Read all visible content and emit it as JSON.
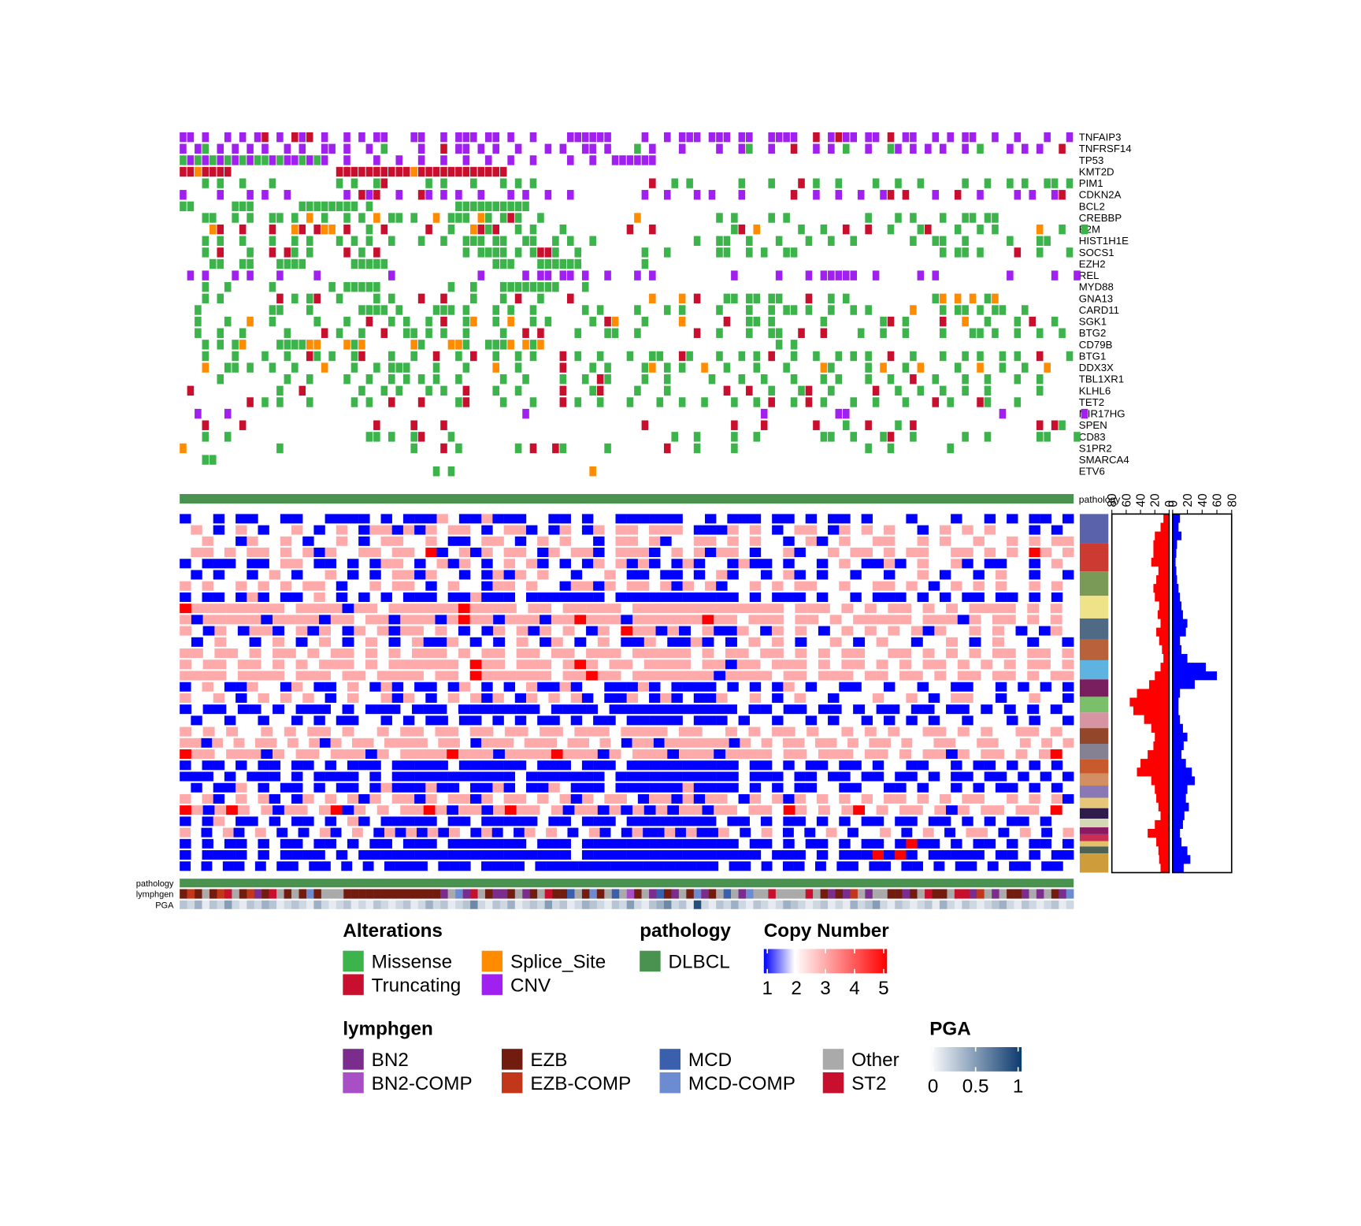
{
  "oncoprint": {
    "annotation_label": "pathology",
    "pathology_color": "#4a9250",
    "genes": [
      {
        "name": "TNFAIP3",
        "cells": "CC.C..C.C.CT.C.TCT.C..C.C.CC...CC..C.CCC.CC.C..C....CCCCCC....C..C.CCC.CCC.CC..CCCC..T.CTCC.CC.T.CC..C.C.CC..C..C...C..C"
      },
      {
        "name": "TNFRSF14",
        "cells": "C.CM.C.C.C.C..C.C..CC.C..C.M....C..T.CC.C.C..C...C.C..CC.C...M.C...C....C..CM..C..T..C.C.M..C..MC.C.C.C..C.M...C.C.C..T."
      },
      {
        "name": "TP53",
        "cells": "MCMCMCMCMCMMCMCCMCMC..C...C..C..C..C..C..C..C..C....C..C..CCCCCC......................................................."
      },
      {
        "name": "KMT2D",
        "cells": "TTSTTTT..............TTTTTTTTTTSTTTTTTTTTTTT......................................................................."
      },
      {
        "name": "PIM1",
        "cells": "...M.M..M...M........M.M..MT.....M.M...M...M.M.M...............T..M.M......M...M...T.M..M....M..M..M.....M..M..M.M..MM.M.."
      },
      {
        "name": "CDKN2A",
        "cells": "C....C...C.C..C.......C.TCT..C..TC.C.C..C...C.C..C..C.........C..C...C.C...C......T..C..C..C..CT.T...C..T..C....C.C..CT."
      },
      {
        "name": "BCL2",
        "cells": "MM.....MMM......MMMMMMMM.M...........MMMMMMMMMM...................................................................."
      },
      {
        "name": "CREBBP",
        "cells": "...MM..M.M..MM.M.S.M..M.M.S.MM.M..S.MMM.SM.MTM..M............S..........M.M....M.M..........M...M.M...M..MM.MM.........."
      },
      {
        "name": "B2M",
        "cells": "....ST..T...T..ST.TSS.T..M.T.....T..M..STMT..M.M...M........T..T..........MT.S.....M..M..T..T..M...MT...M..M.M.....S..M..M"
      },
      {
        "name": "HIST1H1E",
        "cells": "...M.M..M...M..M.M...M.M.M..M...M..M..MMM.MM..MM..M.M..M.............M..MM..M...M...M..M..M.......M..MM..M.....M...MM."
      },
      {
        "name": "SOCS1",
        "cells": "...M.T...M..T.TM.M....T.M.T...........M.MMMM.M.MTTM..M........M..M......MM..M.M..MM...................M.MM.M....T..M...M"
      },
      {
        "name": "EZH2",
        "cells": "....MM..MM...MMMM......MMMMM..............MMM...MMMMMM........M................................................."
      },
      {
        "name": "REL",
        "cells": ".C.C...C.C...C....C.........C...........C.....C.CC.CC.C..C...C.C..........C.....C...C.CCCCC..C.....C.C.........C.....C..C"
      },
      {
        "name": "MYD88",
        "cells": "...M..M.....M.......M.MMMMM.........M..M...MMMMMMMM...M........................................................"
      },
      {
        "name": "GNA13",
        "cells": "...M.M.......T.M.MT..M....M.M...T..T...M...M.T..M...T..........S...S.T...MM.MM.MM...T..M.M...........MS.S.S.MS.........."
      },
      {
        "name": "CARD11",
        "cells": "..M.........MM...M......MMMM.M....MMM.M...M.M..M......M.M....M...M.M....M...M..M.MM.M..M..M.M.....S...M.MM.M.MM..M......"
      },
      {
        "name": "SGK1",
        "cells": "..M...M..S..M.....M...M..T..M.M..M.T..MS..M.S..M.M.....M.TS...M....S.....T..MM.M......M.......MT.M....T..S..M...M.T..M.."
      },
      {
        "name": "BTG2",
        "cells": "..M..M..M.....M....T.M..M..T..MM.M.M..M....M..T.T....M...MM..M.......T..M...M..MM..T..T....M..M..M....M...MM.M..M..M..M."
      },
      {
        "name": "CD79B",
        "cells": "...M.M.MS....MMMMSS...SMS......SM...SSM..MMMS.SMS...............................M.M................................"
      },
      {
        "name": "BTG1",
        "cells": "...M...M...M..M..TM.M..MT...M..M..T..M.T..M..M.M...T.M..M...M..MM..TM...M..M.M.T..M..M..M.M.M..T..M...M..M.M..M.M..T...M"
      },
      {
        "name": "DDX3X",
        "cells": "...S..MM.M..M..M...S...M..M.MMM...M...M...S..M.....T...M.M....MS.M.M..S..M...M...M....SM....M.S..M.S....M..S..M..M..S..."
      },
      {
        "name": "TBL1XR1",
        "cells": ".....M........M..M....M..M..M.M.M.M..M.....M..M....M..M.TM....M..M.....M...M..M...M...M.M...M..M..T..M...M..M...M..M...."
      },
      {
        "name": "KLHL6",
        "cells": ".T...........M..T.......M..M.M...M.M..T...M..M.....T...MT....M...M.......T..T..M...MT..M.....T..M..M..M..M..M......M....."
      },
      {
        "name": "TET2",
        "cells": ".........T.M.M...M.....M.M..T...T....MT....M...M...T.M..M...M...M..M..M...M..M.T..M.T.M...M..M...M...T.M...TM...M......."
      },
      {
        "name": "MIR17HG",
        "cells": "..C...C.......................................C...............................C.........CC....................C..........C........................"
      },
      {
        "name": "SPEN",
        "cells": "...T....T.................T....T...T..........................T...........T...T......T...M..T...M.T................T.TM."
      },
      {
        "name": "CD83",
        "cells": "...M..M..................MM.M..MT...M.............................M..M....M..M........MM..M...MT..M......M..M......MM...M.."
      },
      {
        "name": "S1PR2",
        "cells": "S............M.................M...T.M.......M.T..TM.....M.......T...M....M.................M..M.......M................."
      },
      {
        "name": "SMARCA4",
        "cells": "...MM..............................................................................................................."
      },
      {
        "name": "ETV6",
        "cells": "..................................M.M..................S............................................................"
      }
    ]
  },
  "copy_number": {
    "rows": [
      "12212112211221111212111321131112211212211111122121112112121121222122212212121121",
      "23212321223212321331313233212331213213233233321113232123321323232212323232221212",
      "22322132232122321233223211233212323221233231223323232212312322332232322322323233",
      "23323233232313223323325123132332132331233312323133212231223233232332233232325323",
      "12111211233211212133212313212323121213231312131221311212212321131232231211221232",
      "21212212321223212123313221213132322122321121121231221231212212212232122123221221",
      "32322323232332122323321232213323221331323323132312232323322322332321232323223232",
      "12112131211232121212111211311121111111211111111111212111212212111212121121121212",
      "53333333323333133233333353333233233333233333333333332333232323323232333323232",
      "31333331333313323313331353313331335333133333353323332332323333323331323323232",
      "32132133123132132313323212132313232132533131231132132321232323231322323212132",
      "21232212321232123212311321212321321232113211312123232122321232212232123221221",
      "33233232332323323232333232332332332333233333232332332323233223323232323323323",
      "32332332323233323233333325332333235323323333233133233323233232323323232323323",
      "33332333323332332333323325333333233533233333331333323323332332332323323323233",
      "12321132213211232131211213212123113122111312111121212132122112212212211221212121",
      "32232123232321232231321232313213232312113213121132232123221222322321233221223221",
      "12112112121112121112111211111112111121111111111121121121121211211211212121212",
      "21221221221212112212121121121212112121121111121112122122121221212121221222121221",
      "32323223232332322323323323323323323332333323322323233232232323223323232233232",
      "33132323323231323323333233213332333233232133133333313232332332323323223322332232323",
      "53323331323323331323333533313333533313233313331333323323332332323313233232352",
      "12112121121121211121111121111112111211121111111111211212112112122112212112121212",
      "11121211121211112121111111111121111111211111111111211121121121121121211211212121",
      "21211321211212112131113112113121132111211111131111212121122112211212212121121212",
      "32312323121323231323313233132332323132332133131332132313232323233232323322323231",
      "53135323133235132323353133135332313313131313313323325323235232332313233233252",
      "12132112121121231211111211211111211211121111111121121211212121121121121212112122",
      "32123123212123123213131313213121323212312131131311321232121232122321232123321232123",
      "12121121211211212112111211111112111211111111111111211212112121121511212112121121",
      "12111121211112121111111111111111111211111111111111112111212111515121111121121211",
      "12121121211211212121111211121111211111111111111111211212112121121121121211212112112"
    ],
    "chromosomes": [
      {
        "color": "#5a62ab",
        "size": 34
      },
      {
        "color": "#cc3b32",
        "size": 32
      },
      {
        "color": "#7a9a58",
        "size": 28
      },
      {
        "color": "#efe38a",
        "size": 26
      },
      {
        "color": "#4e6a85",
        "size": 24
      },
      {
        "color": "#b8613a",
        "size": 24
      },
      {
        "color": "#5eb3e0",
        "size": 22
      },
      {
        "color": "#7a1f5e",
        "size": 20
      },
      {
        "color": "#7bbf6a",
        "size": 18
      },
      {
        "color": "#d695a3",
        "size": 18
      },
      {
        "color": "#93472a",
        "size": 18
      },
      {
        "color": "#868192",
        "size": 18
      },
      {
        "color": "#c95a2c",
        "size": 16
      },
      {
        "color": "#d38e62",
        "size": 14
      },
      {
        "color": "#8a77b5",
        "size": 14
      },
      {
        "color": "#e6c77a",
        "size": 12
      },
      {
        "color": "#2e1d4a",
        "size": 12
      },
      {
        "color": "#d3d9b4",
        "size": 10
      },
      {
        "color": "#8b1a66",
        "size": 8
      },
      {
        "color": "#c92f54",
        "size": 8
      },
      {
        "color": "#e5c06b",
        "size": 6
      },
      {
        "color": "#4d6253",
        "size": 8
      },
      {
        "color": "#cf9c3c",
        "size": 22
      }
    ],
    "gain": {
      "color": "#ff0000",
      "xlim": [
        80,
        0
      ],
      "xticks": [
        0,
        20,
        40,
        60,
        80
      ],
      "values": [
        8,
        12,
        20,
        22,
        22,
        25,
        15,
        18,
        22,
        20,
        14,
        16,
        12,
        18,
        14,
        10,
        8,
        12,
        20,
        28,
        45,
        55,
        50,
        35,
        25,
        20,
        22,
        30,
        40,
        45,
        25,
        20,
        18,
        15,
        12,
        20,
        30,
        18,
        15,
        14,
        12
      ]
    },
    "loss": {
      "color": "#0000ff",
      "xlim": [
        0,
        80
      ],
      "xticks": [
        0,
        20,
        40,
        60,
        80
      ],
      "values": [
        10,
        8,
        12,
        6,
        5,
        4,
        5,
        6,
        8,
        10,
        12,
        14,
        20,
        18,
        10,
        12,
        20,
        45,
        60,
        30,
        10,
        8,
        8,
        10,
        14,
        20,
        15,
        12,
        18,
        26,
        30,
        20,
        18,
        22,
        16,
        14,
        10,
        12,
        20,
        24,
        15
      ]
    }
  },
  "annotations": {
    "pathology": {
      "label": "pathology"
    },
    "lymphgen": {
      "label": "lymphgen",
      "cells": "EeEOEeSOEeNESOEOEmEOOOEEEEEEEEEEEEENOmNSOENNEONEOSEEMOEmEOMOnEONMENOEmNEOMONmOOSOOOOSOENENeONOOEENEOSEEOSSNeONOEENONOENm"
    },
    "pga": {
      "label": "PGA",
      "values": [
        0.3,
        0.2,
        0.4,
        0.1,
        0.3,
        0.2,
        0.5,
        0.2,
        0.1,
        0.3,
        0.2,
        0.4,
        0.3,
        0.1,
        0.2,
        0.3,
        0.2,
        0.1,
        0.4,
        0.2,
        0.1,
        0.2,
        0.3,
        0.1,
        0.2,
        0.1,
        0.3,
        0.2,
        0.1,
        0.2,
        0.3,
        0.1,
        0.2,
        0.4,
        0.2,
        0.3,
        0.1,
        0.2,
        0.3,
        0.6,
        0.2,
        0.1,
        0.3,
        0.2,
        0.4,
        0.1,
        0.2,
        0.3,
        0.2,
        0.5,
        0.2,
        0.3,
        0.1,
        0.2,
        0.4,
        0.3,
        0.2,
        0.1,
        0.3,
        0.2,
        0.5,
        0.2,
        0.1,
        0.3,
        0.4,
        0.6,
        0.2,
        0.3,
        0.1,
        0.9,
        0.2,
        0.1,
        0.3,
        0.2,
        0.4,
        0.2,
        0.1,
        0.3,
        0.2,
        0.1,
        0.2,
        0.4,
        0.3,
        0.2,
        0.1,
        0.2,
        0.3,
        0.1,
        0.2,
        0.1,
        0.4,
        0.2,
        0.3,
        0.5,
        0.2,
        0.1,
        0.3,
        0.2,
        0.1,
        0.2,
        0.3,
        0.1,
        0.4,
        0.2,
        0.1,
        0.3,
        0.2,
        0.1,
        0.2,
        0.3,
        0.4,
        0.2,
        0.1,
        0.3,
        0.2,
        0.1,
        0.2,
        0.3,
        0.1,
        0.2
      ]
    }
  },
  "legends": {
    "alterations": {
      "title": "Alterations",
      "items": [
        {
          "name": "Missense",
          "color": "#3cb44b",
          "code": "M"
        },
        {
          "name": "Truncating",
          "color": "#c8102e",
          "code": "T"
        },
        {
          "name": "Splice_Site",
          "color": "#ff8c00",
          "code": "S"
        },
        {
          "name": "CNV",
          "color": "#a020f0",
          "code": "C"
        }
      ]
    },
    "pathology": {
      "title": "pathology",
      "items": [
        {
          "name": "DLBCL",
          "color": "#4a9250"
        }
      ]
    },
    "copy_number": {
      "title": "Copy Number",
      "lim": [
        1,
        5
      ],
      "ticks": [
        1,
        2,
        3,
        4,
        5
      ],
      "stops": [
        {
          "value": 1,
          "color": "#0000ff"
        },
        {
          "value": 2,
          "color": "#ffffff"
        },
        {
          "value": 5,
          "color": "#ff0000"
        }
      ]
    },
    "lymphgen": {
      "title": "lymphgen",
      "items": [
        {
          "name": "BN2",
          "color": "#7b2d8e",
          "code": "N"
        },
        {
          "name": "BN2-COMP",
          "color": "#a94fc6",
          "code": "n"
        },
        {
          "name": "EZB",
          "color": "#721c0f",
          "code": "E"
        },
        {
          "name": "EZB-COMP",
          "color": "#c2361a",
          "code": "e"
        },
        {
          "name": "MCD",
          "color": "#3a5fad",
          "code": "M"
        },
        {
          "name": "MCD-COMP",
          "color": "#6d8bd1",
          "code": "m"
        },
        {
          "name": "Other",
          "color": "#aaaaaa",
          "code": "O"
        },
        {
          "name": "ST2",
          "color": "#c8102e",
          "code": "S"
        }
      ]
    },
    "pga": {
      "title": "PGA",
      "lim": [
        0,
        1
      ],
      "ticks": [
        0,
        0.5,
        1
      ],
      "stops": [
        {
          "value": 0,
          "color": "#ffffff"
        },
        {
          "value": 1,
          "color": "#0b3a6e"
        }
      ]
    }
  }
}
